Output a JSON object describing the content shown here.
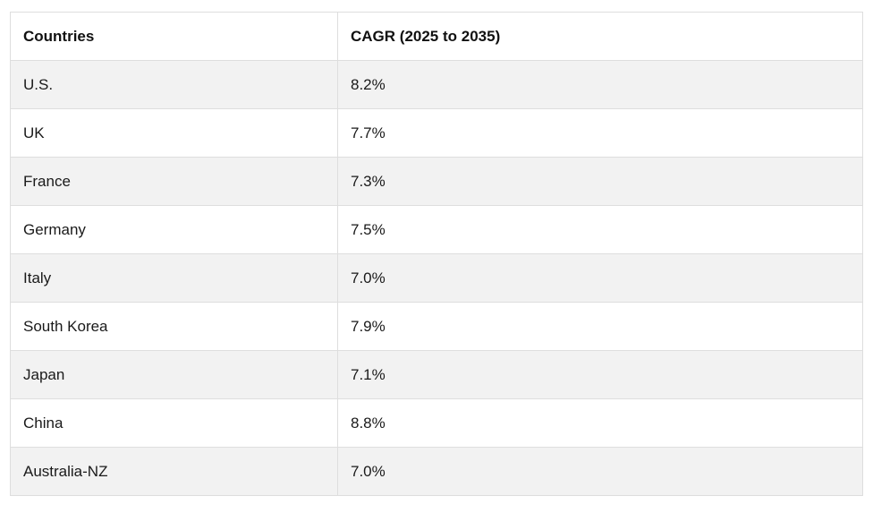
{
  "table": {
    "headers": [
      "Countries",
      "CAGR (2025 to 2035)"
    ],
    "rows": [
      [
        "U.S.",
        "8.2%"
      ],
      [
        "UK",
        "7.7%"
      ],
      [
        "France",
        "7.3%"
      ],
      [
        "Germany",
        "7.5%"
      ],
      [
        "Italy",
        "7.0%"
      ],
      [
        "South Korea",
        "7.9%"
      ],
      [
        "Japan",
        "7.1%"
      ],
      [
        "China",
        "8.8%"
      ],
      [
        "Australia-NZ",
        "7.0%"
      ]
    ]
  },
  "colors": {
    "row_alt": "#f2f2f2",
    "border": "#dedede"
  }
}
